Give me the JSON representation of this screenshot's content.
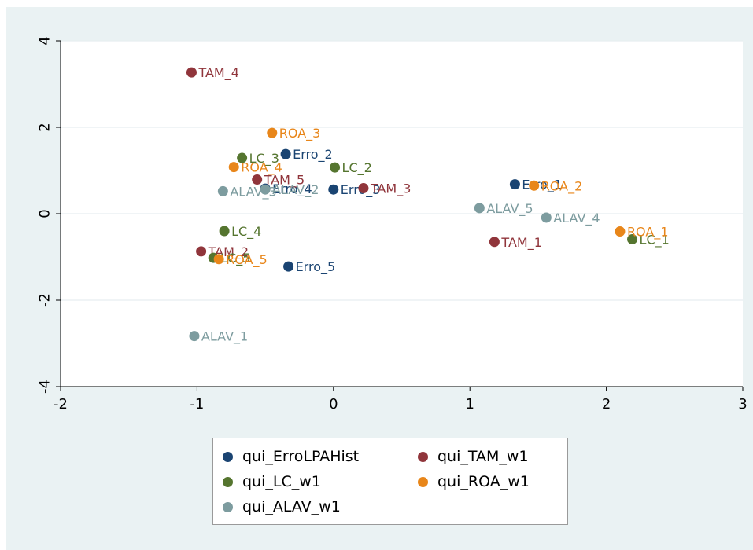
{
  "chart_data": {
    "type": "scatter",
    "title": "",
    "xlabel": "",
    "ylabel": "",
    "xlim": [
      -2,
      3
    ],
    "ylim": [
      -4,
      4
    ],
    "xticks": [
      -2,
      -1,
      0,
      1,
      2,
      3
    ],
    "yticks": [
      -4,
      -2,
      0,
      2,
      4
    ],
    "grid": true,
    "legend_position": "bottom",
    "series": [
      {
        "name": "qui_ErroLPAHist",
        "color": "#1a4472",
        "points": [
          {
            "label": "Erro_1",
            "x": 1.33,
            "y": 0.68
          },
          {
            "label": "Erro_2",
            "x": -0.35,
            "y": 1.38
          },
          {
            "label": "Erro_3",
            "x": 0.0,
            "y": 0.56
          },
          {
            "label": "Erro_4",
            "x": -0.5,
            "y": 0.58
          },
          {
            "label": "Erro_5",
            "x": -0.33,
            "y": -1.22
          }
        ]
      },
      {
        "name": "qui_TAM_w1",
        "color": "#90353b",
        "points": [
          {
            "label": "TAM_1",
            "x": 1.18,
            "y": -0.65
          },
          {
            "label": "TAM_2",
            "x": -0.97,
            "y": -0.87
          },
          {
            "label": "TAM_3",
            "x": 0.22,
            "y": 0.59
          },
          {
            "label": "TAM_4",
            "x": -1.04,
            "y": 3.27
          },
          {
            "label": "TAM_5",
            "x": -0.56,
            "y": 0.79
          }
        ]
      },
      {
        "name": "qui_LC_w1",
        "color": "#55752f",
        "points": [
          {
            "label": "LC_1",
            "x": 2.19,
            "y": -0.59
          },
          {
            "label": "LC_2",
            "x": 0.01,
            "y": 1.07
          },
          {
            "label": "LC_3",
            "x": -0.67,
            "y": 1.29
          },
          {
            "label": "LC_4",
            "x": -0.8,
            "y": -0.4
          },
          {
            "label": "LC_5",
            "x": -0.88,
            "y": -1.02
          }
        ]
      },
      {
        "name": "qui_ROA_w1",
        "color": "#e8861a",
        "points": [
          {
            "label": "ROA_1",
            "x": 2.1,
            "y": -0.41
          },
          {
            "label": "ROA_2",
            "x": 1.47,
            "y": 0.65
          },
          {
            "label": "ROA_3",
            "x": -0.45,
            "y": 1.87
          },
          {
            "label": "ROA_4",
            "x": -0.73,
            "y": 1.08
          },
          {
            "label": "ROA_5",
            "x": -0.84,
            "y": -1.05
          }
        ]
      },
      {
        "name": "qui_ALAV_w1",
        "color": "#7d9c9f",
        "points": [
          {
            "label": "ALAV_1",
            "x": -1.02,
            "y": -2.83
          },
          {
            "label": "ALAV_2",
            "x": -0.5,
            "y": 0.56
          },
          {
            "label": "ALAV_3",
            "x": -0.81,
            "y": 0.52
          },
          {
            "label": "ALAV_4",
            "x": 1.56,
            "y": -0.09
          },
          {
            "label": "ALAV_5",
            "x": 1.07,
            "y": 0.13
          }
        ]
      }
    ]
  },
  "legend": {
    "items": [
      {
        "label": "qui_ErroLPAHist",
        "color": "#1a4472"
      },
      {
        "label": "qui_TAM_w1",
        "color": "#90353b"
      },
      {
        "label": "qui_LC_w1",
        "color": "#55752f"
      },
      {
        "label": "qui_ROA_w1",
        "color": "#e8861a"
      },
      {
        "label": "qui_ALAV_w1",
        "color": "#7d9c9f"
      }
    ]
  }
}
